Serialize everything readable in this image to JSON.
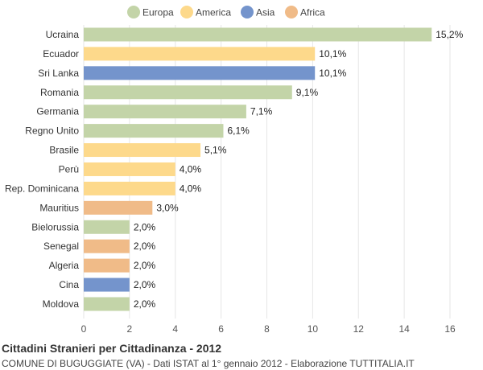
{
  "chart_data": {
    "type": "bar",
    "orientation": "horizontal",
    "title": "Cittadini Stranieri per Cittadinanza - 2012",
    "subtitle": "COMUNE DI BUGUGGIATE (VA) - Dati ISTAT al 1° gennaio 2012 - Elaborazione TUTTITALIA.IT",
    "xlim": [
      0,
      16
    ],
    "xticks": [
      0,
      2,
      4,
      6,
      8,
      10,
      12,
      14,
      16
    ],
    "grid": true,
    "legend_position": "top",
    "legend": [
      {
        "name": "Europa",
        "color": "#c3d4a8"
      },
      {
        "name": "America",
        "color": "#fdd98b"
      },
      {
        "name": "Asia",
        "color": "#7494cc"
      },
      {
        "name": "Africa",
        "color": "#f0bb88"
      }
    ],
    "categories": [
      "Ucraina",
      "Ecuador",
      "Sri Lanka",
      "Romania",
      "Germania",
      "Regno Unito",
      "Brasile",
      "Perù",
      "Rep. Dominicana",
      "Mauritius",
      "Bielorussia",
      "Senegal",
      "Algeria",
      "Cina",
      "Moldova"
    ],
    "values": [
      15.2,
      10.1,
      10.1,
      9.1,
      7.1,
      6.1,
      5.1,
      4.0,
      4.0,
      3.0,
      2.0,
      2.0,
      2.0,
      2.0,
      2.0
    ],
    "value_labels": [
      "15,2%",
      "10,1%",
      "10,1%",
      "9,1%",
      "7,1%",
      "6,1%",
      "5,1%",
      "4,0%",
      "4,0%",
      "3,0%",
      "2,0%",
      "2,0%",
      "2,0%",
      "2,0%",
      "2,0%"
    ],
    "groups": [
      "Europa",
      "America",
      "Asia",
      "Europa",
      "Europa",
      "Europa",
      "America",
      "America",
      "America",
      "Africa",
      "Europa",
      "Africa",
      "Africa",
      "Asia",
      "Europa"
    ]
  }
}
